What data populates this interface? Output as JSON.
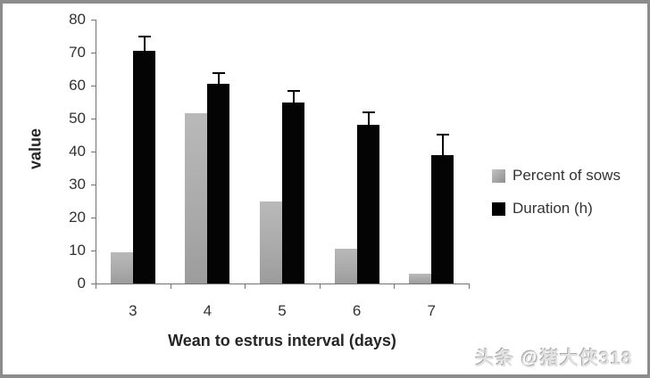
{
  "chart_data": {
    "type": "bar",
    "title": "",
    "xlabel": "Wean to estrus interval (days)",
    "ylabel": "value",
    "categories": [
      "3",
      "4",
      "5",
      "6",
      "7"
    ],
    "series": [
      {
        "name": "Percent of sows",
        "key": "percent-of-sows",
        "color": "#a8a8a8",
        "values": [
          9.5,
          51.5,
          25,
          10.5,
          3
        ]
      },
      {
        "name": "Duration (h)",
        "key": "duration-h",
        "color": "#000000",
        "values": [
          70.5,
          60.5,
          55,
          48,
          39
        ],
        "errors": [
          4,
          3,
          3,
          3.5,
          6
        ]
      }
    ],
    "ylim": [
      0,
      80
    ],
    "yticks": [
      "0",
      "10",
      "20",
      "30",
      "40",
      "50",
      "60",
      "70",
      "80"
    ],
    "legend_position": "right",
    "grid": false,
    "axis_color": "#737373",
    "bar_colors": {
      "percent-of-sows": "#a8a8a8",
      "duration-h": "#000000"
    }
  },
  "watermark": {
    "text": "头条 @猪大侠318"
  }
}
